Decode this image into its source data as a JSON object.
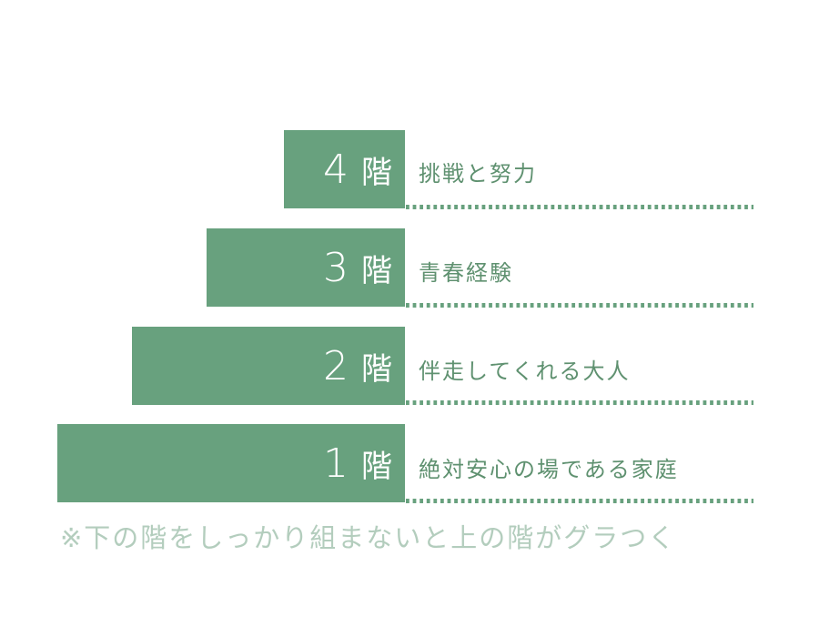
{
  "floors": [
    {
      "number": "4",
      "unit": "階",
      "label": "挑戦と努力"
    },
    {
      "number": "3",
      "unit": "階",
      "label": "青春経験"
    },
    {
      "number": "2",
      "unit": "階",
      "label": "伴走してくれる大人"
    },
    {
      "number": "1",
      "unit": "階",
      "label": "絶対安心の場である家庭"
    }
  ],
  "note": "※下の階をしっかり組まないと上の階がグラつく",
  "colors": {
    "bar": "#68a17e",
    "label": "#5f9170",
    "note": "#b3cdbd"
  }
}
